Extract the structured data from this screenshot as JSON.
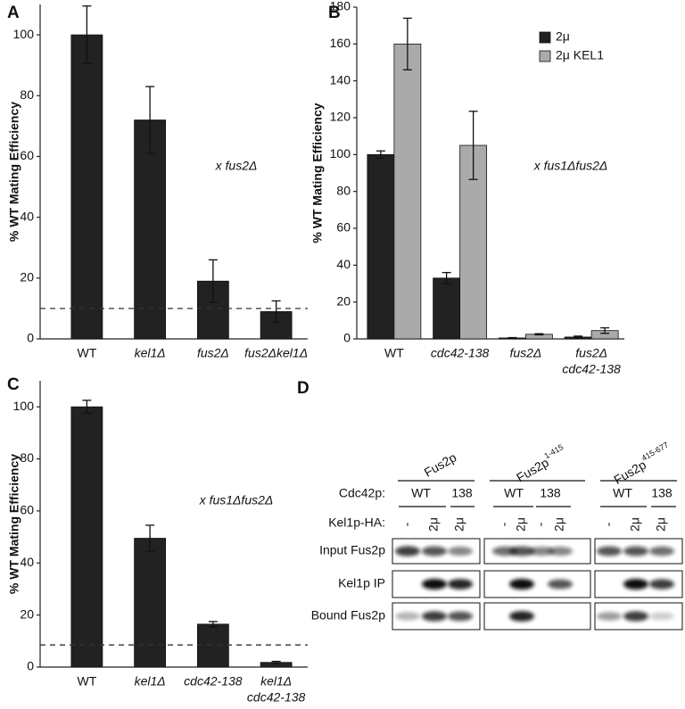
{
  "chart_data": [
    {
      "type": "bar",
      "panel_label": "A",
      "ylabel": "% WT Mating Efficiency",
      "annotation": "x fus2Δ",
      "categories": [
        "WT",
        "kel1Δ",
        "fus2Δ",
        "fus2Δkel1Δ"
      ],
      "values": [
        100,
        72,
        19,
        9
      ],
      "errors": [
        9.5,
        11,
        7,
        3.5
      ],
      "color": "#222222",
      "reference_line": 10,
      "ylim": [
        0,
        110
      ],
      "yticks": [
        0,
        20,
        40,
        60,
        80,
        100
      ]
    },
    {
      "type": "bar",
      "panel_label": "B",
      "ylabel": "% WT Mating Efficiency",
      "annotation": "x fus1Δfus2Δ",
      "categories": [
        "WT",
        "cdc42-138",
        "fus2Δ",
        [
          "fus2Δ",
          "cdc42-138"
        ]
      ],
      "series": [
        {
          "name": "2μ",
          "color": "#222222",
          "values": [
            100,
            33,
            0.5,
            1
          ],
          "errors": [
            2,
            3,
            0.2,
            0.5
          ]
        },
        {
          "name": "2μ KEL1",
          "color": "#aaaaaa",
          "values": [
            160,
            105,
            2.5,
            4.5
          ],
          "errors": [
            14,
            18.5,
            0.3,
            1.5
          ]
        }
      ],
      "ylim": [
        0,
        180
      ],
      "yticks": [
        0,
        20,
        40,
        60,
        80,
        100,
        120,
        140,
        160,
        180
      ]
    },
    {
      "type": "bar",
      "panel_label": "C",
      "ylabel": "% WT Mating Efficiency",
      "annotation": "x fus1Δfus2Δ",
      "categories": [
        "WT",
        "kel1Δ",
        "cdc42-138",
        [
          "kel1Δ",
          "cdc42-138"
        ]
      ],
      "values": [
        100,
        49.5,
        16.5,
        1.8
      ],
      "errors": [
        2.5,
        5,
        1,
        0.4
      ],
      "color": "#222222",
      "reference_line": 8.5,
      "ylim": [
        0,
        110
      ],
      "yticks": [
        0,
        20,
        40,
        60,
        80,
        100
      ]
    }
  ],
  "blot": {
    "panel_label": "D",
    "cdc42_label": "Cdc42p:",
    "kel1_label": "Kel1p-HA:",
    "rows": [
      "Input Fus2p",
      "Kel1p IP",
      "Bound Fus2p"
    ],
    "groups": [
      {
        "name": "Fus2p",
        "cdc42": [
          "WT",
          "138"
        ],
        "kel1": [
          "-",
          "2μ",
          "2μ"
        ]
      },
      {
        "name": "Fus2p",
        "superscript": "1-415",
        "cdc42": [
          "WT",
          "138"
        ],
        "kel1": [
          "-",
          "2μ",
          "-",
          "2μ"
        ]
      },
      {
        "name": "Fus2p",
        "superscript": "415-677",
        "cdc42": [
          "WT",
          "138"
        ],
        "kel1": [
          "-",
          "2μ",
          "2μ"
        ]
      }
    ]
  }
}
